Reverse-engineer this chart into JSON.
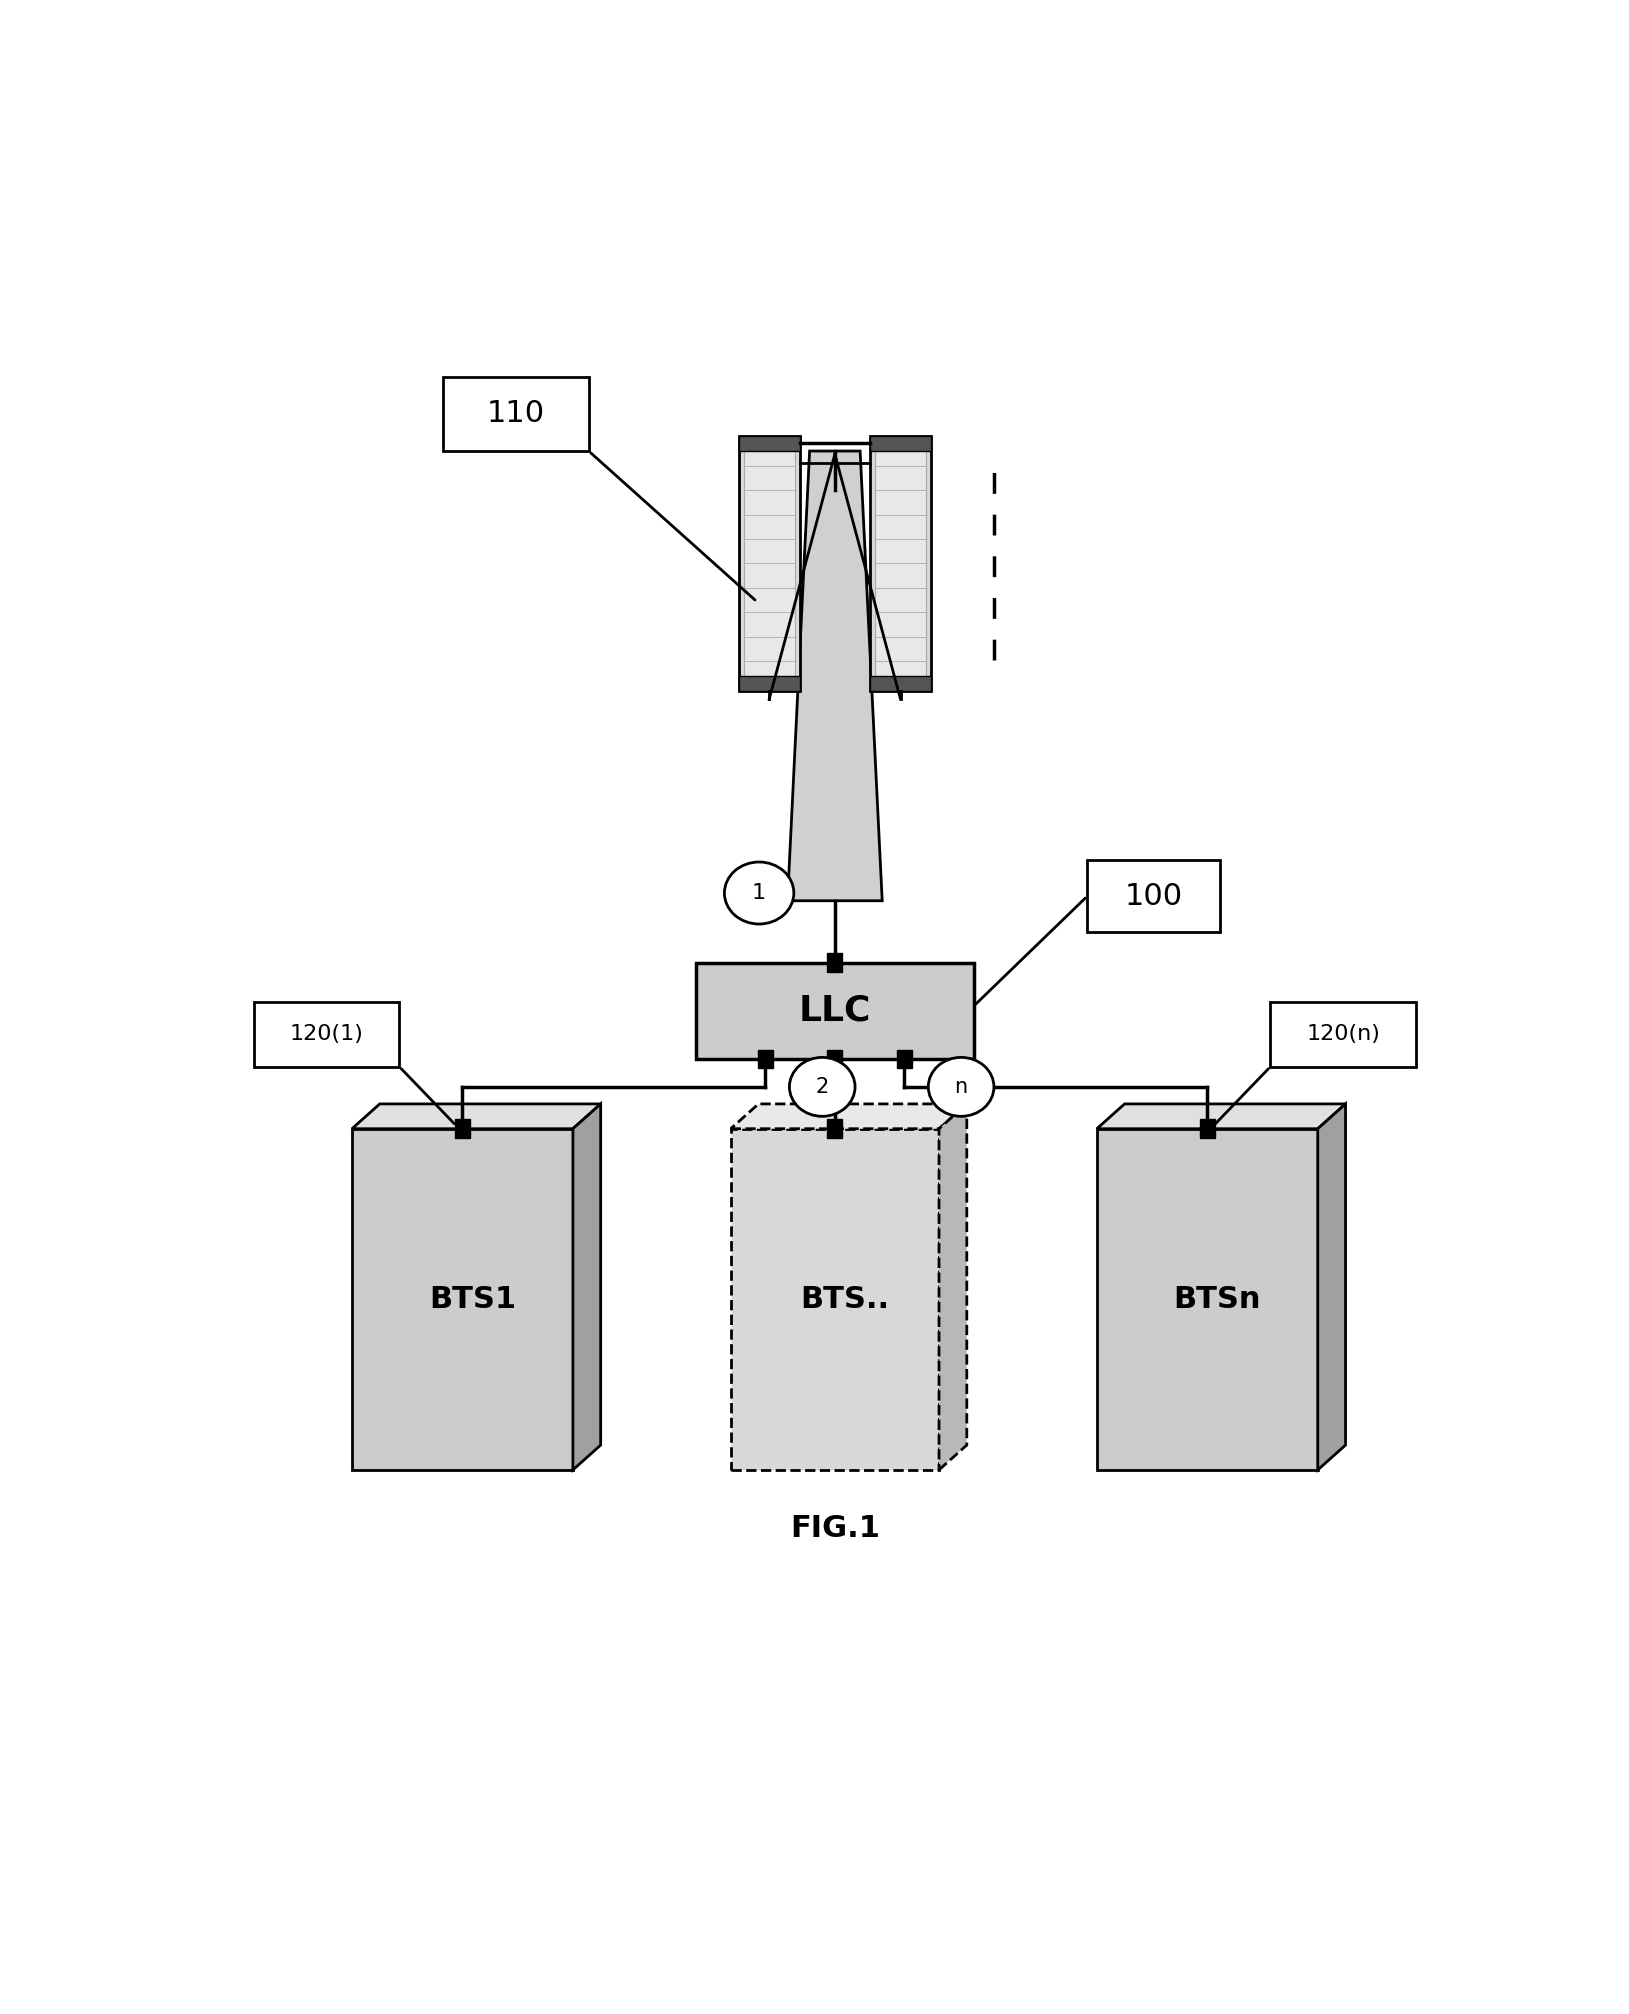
{
  "fig_width": 16.29,
  "fig_height": 20.14,
  "bg_color": "#ffffff",
  "antenna_color": "#d0d0d0",
  "tower_color": "#d0d0d0",
  "llc_color": "#c8c8c8",
  "bts_color": "#c8c8c8",
  "label_110": "110",
  "label_100": "100",
  "label_LLC": "LLC",
  "label_1": "1",
  "label_2": "2",
  "label_n": "n",
  "label_BTS1": "BTS1",
  "label_BTSdot": "BTS..",
  "label_BTSn": "BTSn",
  "label_120_1": "120(1)",
  "label_120_n": "120(n)",
  "label_fig": "FIG.1"
}
